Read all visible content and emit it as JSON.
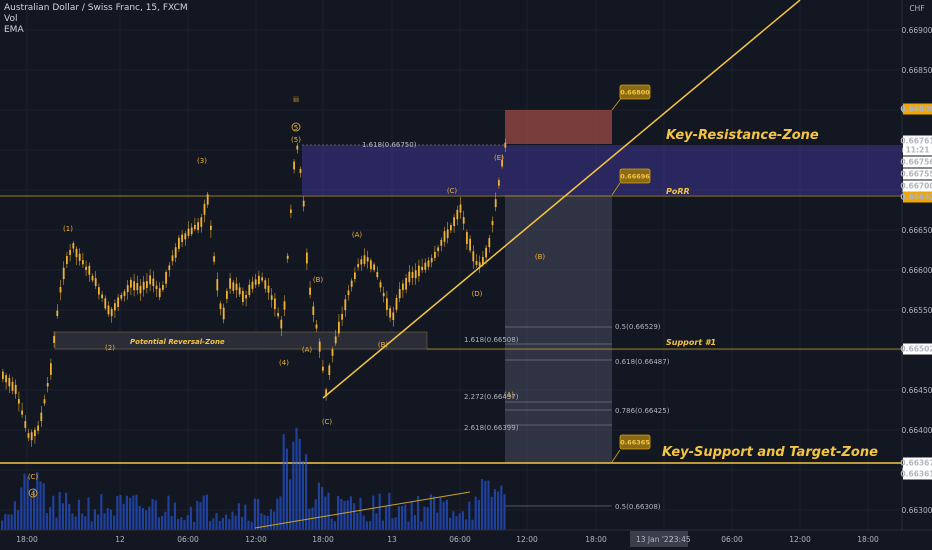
{
  "legend": {
    "symbol": "Australian Dollar / Swiss Franc, 15, FXCM",
    "vol": "Vol",
    "ema": "EMA"
  },
  "price_axis": {
    "currency": "CHF",
    "ticks": [
      "0.66900",
      "0.66850",
      "0.66800",
      "0.66750",
      "0.66700",
      "0.66650",
      "0.66600",
      "0.66550",
      "0.66500",
      "0.66450",
      "0.66400",
      "0.66350",
      "0.66300"
    ]
  },
  "time_axis": {
    "ticks": [
      "18:00",
      "12",
      "06:00",
      "12:00",
      "18:00",
      "13",
      "06:00",
      "12:00",
      "18:00",
      "06:00",
      "12:00",
      "18:00"
    ],
    "cursor_label": "13 Jan '22",
    "cursor_time": "23:45"
  },
  "price_badges": [
    {
      "text": "0.66800",
      "bg": "#f0a500",
      "fg": "#131722"
    },
    {
      "text": "0.66761",
      "bg": "#ffffff",
      "fg": "#131722"
    },
    {
      "text": "11:21",
      "bg": "#ffffff",
      "fg": "#131722"
    },
    {
      "text": "0.66756",
      "bg": "#ffffff",
      "fg": "#131722"
    },
    {
      "text": "0.66755",
      "bg": "#ffffff",
      "fg": "#131722"
    },
    {
      "text": "0.66700",
      "bg": "#ffffff",
      "fg": "#131722"
    },
    {
      "text": "0.66692",
      "bg": "#f0a500",
      "fg": "#131722"
    },
    {
      "text": "0.66502",
      "bg": "#ffffff",
      "fg": "#131722"
    },
    {
      "text": "0.66367",
      "bg": "#ffffff",
      "fg": "#131722"
    },
    {
      "text": "0.66361",
      "bg": "#ffffff",
      "fg": "#131722"
    }
  ],
  "chart_tags": [
    {
      "text": "0.66800"
    },
    {
      "text": "0.66696"
    },
    {
      "text": "0.66365"
    }
  ],
  "zones": {
    "key_resistance": "Key-Resistance-Zone",
    "porr": "PoRR",
    "support1": "Support #1",
    "key_support": "Key-Support and Target-Zone",
    "potential_reversal": "Potential Reversal-Zone"
  },
  "fib_labels": {
    "f1": "1.618(0.66750)",
    "f2": "1.618(0.66508)",
    "f3": "2.272(0.66437)",
    "f4": "2.618(0.66399)",
    "r1": "0.5(0.66529)",
    "r2": "0.618(0.66487)",
    "r3": "0.786(0.66425)",
    "r4": "0.5(0.66308)"
  },
  "waves": {
    "w_iii": "iii",
    "w5circ": "5",
    "w1": "(1)",
    "w2": "(2)",
    "w3": "(3)",
    "w4": "(4)",
    "w5": "(5)",
    "wA1": "(A)",
    "wB1": "(B)",
    "wC1": "(C)",
    "wA2": "(A)",
    "wB2": "(B)",
    "wC2": "(C)",
    "wD": "(D)",
    "wE": "(E)",
    "wBf": "(B)",
    "wAf": "(A)",
    "wCc": "(C)",
    "w4circ": "4"
  },
  "colors": {
    "background": "#131722",
    "candle": "#f0b232",
    "volume": "#2962ff",
    "key_line": "#f5c542",
    "resistance_box": "#9b4a44",
    "porr_box": "#4a3f9c",
    "projection_box": "#4b4f63"
  }
}
